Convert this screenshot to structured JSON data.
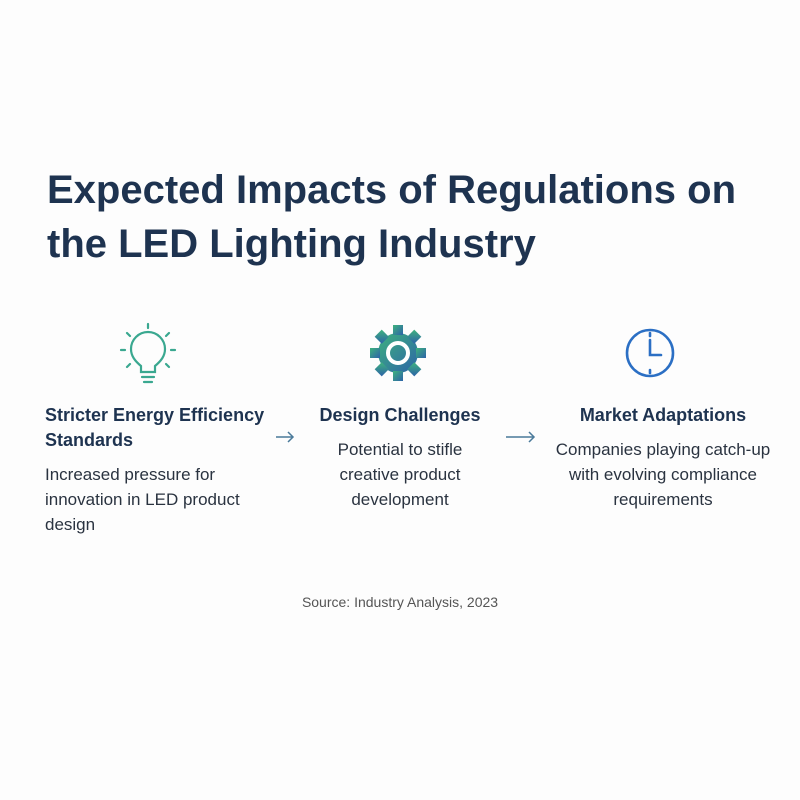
{
  "header": {
    "title": "Expected Impacts of Regulations on the LED Lighting Industry"
  },
  "steps": [
    {
      "title": "Stricter Energy Efficiency Standards",
      "description": "Increased pressure for innovation in LED product design"
    },
    {
      "title": "Design Challenges",
      "description": "Potential to stifle creative product development"
    },
    {
      "title": "Market Adaptations",
      "description": "Companies playing catch-up with evolving compliance requirements"
    }
  ],
  "footer": {
    "source": "Source: Industry Analysis, 2023"
  }
}
